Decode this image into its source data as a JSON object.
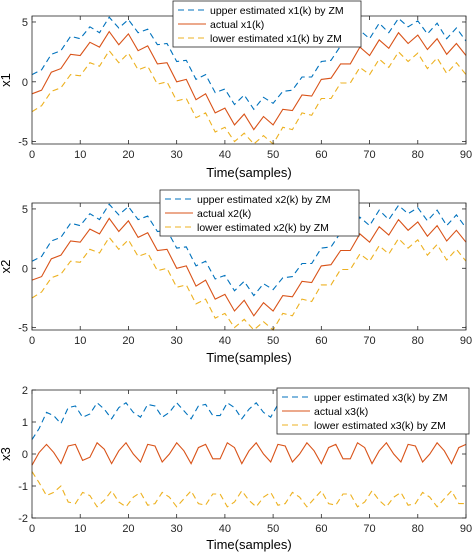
{
  "chart_data": [
    {
      "type": "line",
      "xlabel": "Time(samples)",
      "ylabel": "x1",
      "xlim": [
        0,
        90
      ],
      "ylim": [
        -5.2,
        5.5
      ],
      "xticks": [
        "0",
        "10",
        "20",
        "30",
        "40",
        "50",
        "60",
        "70",
        "80",
        "90"
      ],
      "yticks": [
        "-5",
        "0",
        "5"
      ],
      "legend_position": "top-right",
      "x": [
        0,
        2,
        4,
        6,
        8,
        10,
        12,
        14,
        16,
        18,
        20,
        22,
        24,
        26,
        28,
        30,
        32,
        34,
        36,
        38,
        40,
        42,
        44,
        46,
        48,
        50,
        52,
        54,
        56,
        58,
        60,
        62,
        64,
        66,
        68,
        70,
        72,
        74,
        76,
        78,
        80,
        82,
        84,
        86,
        88,
        90
      ],
      "series": [
        {
          "name": "upper estimated x1(k) by ZM",
          "color": "#0072BD",
          "dash": "dashed",
          "values": [
            0.6,
            1.0,
            2.3,
            2.6,
            3.8,
            3.6,
            4.6,
            4.1,
            5.4,
            4.5,
            5.2,
            4.1,
            4.4,
            3.1,
            3.2,
            1.7,
            1.8,
            0.2,
            0.6,
            -0.9,
            -0.6,
            -1.9,
            -1.1,
            -2.3,
            -1.3,
            -1.8,
            -0.8,
            -0.7,
            0.4,
            0.4,
            1.7,
            1.8,
            3.0,
            3.0,
            4.3,
            3.6,
            4.9,
            4.1,
            5.3,
            4.6,
            5.1,
            4.0,
            4.9,
            3.6,
            4.5,
            3.4
          ]
        },
        {
          "name": "actual x1(k)",
          "color": "#D95319",
          "dash": "solid",
          "values": [
            -1.0,
            -0.7,
            0.8,
            1.1,
            2.3,
            2.2,
            3.3,
            2.9,
            4.2,
            3.1,
            4.0,
            2.6,
            3.0,
            1.5,
            1.6,
            0.0,
            0.2,
            -1.5,
            -1.0,
            -2.6,
            -2.2,
            -3.6,
            -2.7,
            -4.0,
            -2.9,
            -3.6,
            -2.3,
            -2.4,
            -1.1,
            -1.2,
            0.2,
            0.3,
            1.5,
            1.5,
            2.9,
            2.2,
            3.5,
            2.8,
            4.1,
            3.2,
            3.9,
            2.7,
            3.6,
            2.3,
            3.2,
            2.2
          ]
        },
        {
          "name": "lower estimated x1(k) by ZM",
          "color": "#EDB120",
          "dash": "dashed",
          "values": [
            -2.5,
            -2.0,
            -0.8,
            -0.5,
            0.6,
            0.5,
            1.6,
            1.3,
            2.6,
            1.6,
            2.4,
            1.0,
            1.3,
            -0.2,
            0.0,
            -1.6,
            -1.4,
            -3.0,
            -2.6,
            -4.2,
            -3.8,
            -5.0,
            -4.3,
            -5.2,
            -4.5,
            -5.2,
            -3.8,
            -4.0,
            -2.6,
            -2.8,
            -1.4,
            -1.4,
            -0.1,
            -0.1,
            1.2,
            0.6,
            1.9,
            1.2,
            2.5,
            1.7,
            2.4,
            1.1,
            2.0,
            0.7,
            1.6,
            0.6
          ]
        }
      ]
    },
    {
      "type": "line",
      "xlabel": "Time(samples)",
      "ylabel": "x2",
      "xlim": [
        0,
        90
      ],
      "ylim": [
        -5.2,
        5.5
      ],
      "xticks": [
        "0",
        "10",
        "20",
        "30",
        "40",
        "50",
        "60",
        "70",
        "80",
        "90"
      ],
      "yticks": [
        "-5",
        "0",
        "5"
      ],
      "legend_position": "top-right",
      "x": [
        0,
        2,
        4,
        6,
        8,
        10,
        12,
        14,
        16,
        18,
        20,
        22,
        24,
        26,
        28,
        30,
        32,
        34,
        36,
        38,
        40,
        42,
        44,
        46,
        48,
        50,
        52,
        54,
        56,
        58,
        60,
        62,
        64,
        66,
        68,
        70,
        72,
        74,
        76,
        78,
        80,
        82,
        84,
        86,
        88,
        90
      ],
      "series": [
        {
          "name": "upper estimated x2(k) by ZM",
          "color": "#0072BD",
          "dash": "dashed",
          "values": [
            0.6,
            1.0,
            2.3,
            2.6,
            3.8,
            3.6,
            4.6,
            4.1,
            5.4,
            4.5,
            5.2,
            4.1,
            4.4,
            3.1,
            3.2,
            1.7,
            1.8,
            0.2,
            0.6,
            -0.9,
            -0.6,
            -1.9,
            -1.1,
            -2.3,
            -1.3,
            -1.8,
            -0.8,
            -0.7,
            0.4,
            0.4,
            1.7,
            1.8,
            3.0,
            3.0,
            4.3,
            3.6,
            4.9,
            4.1,
            5.3,
            4.6,
            5.1,
            4.0,
            4.9,
            3.6,
            4.5,
            3.4
          ]
        },
        {
          "name": "actual x2(k)",
          "color": "#D95319",
          "dash": "solid",
          "values": [
            -1.0,
            -0.7,
            0.8,
            1.1,
            2.3,
            2.2,
            3.3,
            2.9,
            4.2,
            3.1,
            4.0,
            2.6,
            3.0,
            1.5,
            1.6,
            0.0,
            0.2,
            -1.5,
            -1.0,
            -2.6,
            -2.2,
            -3.6,
            -2.7,
            -4.0,
            -2.9,
            -3.6,
            -2.3,
            -2.4,
            -1.1,
            -1.2,
            0.2,
            0.3,
            1.5,
            1.5,
            2.9,
            2.2,
            3.5,
            2.8,
            4.1,
            3.2,
            3.9,
            2.7,
            3.6,
            2.3,
            3.2,
            2.2
          ]
        },
        {
          "name": "lower estimated x2(k) by ZM",
          "color": "#EDB120",
          "dash": "dashed",
          "values": [
            -2.5,
            -2.0,
            -0.8,
            -0.5,
            0.6,
            0.5,
            1.6,
            1.3,
            2.6,
            1.6,
            2.4,
            1.0,
            1.3,
            -0.2,
            0.0,
            -1.6,
            -1.4,
            -3.0,
            -2.6,
            -4.2,
            -3.8,
            -5.0,
            -4.3,
            -5.2,
            -4.5,
            -5.2,
            -3.8,
            -4.0,
            -2.6,
            -2.8,
            -1.4,
            -1.4,
            -0.1,
            -0.1,
            1.2,
            0.6,
            1.9,
            1.2,
            2.5,
            1.7,
            2.4,
            1.1,
            2.0,
            0.7,
            1.6,
            0.6
          ]
        }
      ]
    },
    {
      "type": "line",
      "xlabel": "Time(samples)",
      "ylabel": "x3",
      "xlim": [
        0,
        90
      ],
      "ylim": [
        -2,
        2
      ],
      "xticks": [
        "0",
        "10",
        "20",
        "30",
        "40",
        "50",
        "60",
        "70",
        "80",
        "90"
      ],
      "yticks": [
        "-2",
        "-1",
        "0",
        "1",
        "2"
      ],
      "legend_position": "top-right",
      "x": [
        0,
        1.5,
        3,
        4.5,
        6,
        7.5,
        9,
        10.5,
        12,
        13.5,
        15,
        16.5,
        18,
        19.5,
        21,
        22.5,
        24,
        25.5,
        27,
        28.5,
        30,
        31.5,
        33,
        34.5,
        36,
        37.5,
        39,
        40.5,
        42,
        43.5,
        45,
        46.5,
        48,
        49.5,
        51,
        52.5,
        54,
        55.5,
        57,
        58.5,
        60,
        61.5,
        63,
        64.5,
        66,
        67.5,
        69,
        70.5,
        72,
        73.5,
        75,
        76.5,
        78,
        79.5,
        81,
        82.5,
        84,
        85.5,
        87,
        88.5,
        90
      ],
      "series": [
        {
          "name": "upper estimated x3(k) by ZM",
          "color": "#0072BD",
          "dash": "dashed",
          "values": [
            0.45,
            0.8,
            1.3,
            1.2,
            0.95,
            1.45,
            1.5,
            1.15,
            1.25,
            1.6,
            1.4,
            1.1,
            1.45,
            1.6,
            1.3,
            1.15,
            1.55,
            1.5,
            1.15,
            1.3,
            1.6,
            1.35,
            1.1,
            1.5,
            1.55,
            1.2,
            1.2,
            1.6,
            1.45,
            1.1,
            1.4,
            1.6,
            1.3,
            1.15,
            1.55,
            1.5,
            1.15,
            1.3,
            1.6,
            1.35,
            1.1,
            1.5,
            1.55,
            1.2,
            1.2,
            1.6,
            1.45,
            1.1,
            1.4,
            1.6,
            1.3,
            1.15,
            1.55,
            1.5,
            1.15,
            1.3,
            1.6,
            1.35,
            1.1,
            1.5,
            1.5
          ]
        },
        {
          "name": "actual x3(k)",
          "color": "#D95319",
          "dash": "solid",
          "values": [
            -0.35,
            0.05,
            0.3,
            0.05,
            -0.3,
            0.25,
            0.3,
            -0.2,
            -0.1,
            0.35,
            0.15,
            -0.3,
            0.1,
            0.35,
            0.0,
            -0.25,
            0.3,
            0.25,
            -0.25,
            0.0,
            0.35,
            0.1,
            -0.3,
            0.2,
            0.3,
            -0.15,
            -0.15,
            0.35,
            0.2,
            -0.3,
            0.1,
            0.35,
            0.0,
            -0.25,
            0.3,
            0.25,
            -0.25,
            0.0,
            0.35,
            0.1,
            -0.3,
            0.2,
            0.3,
            -0.15,
            -0.15,
            0.35,
            0.2,
            -0.3,
            0.1,
            0.35,
            0.0,
            -0.25,
            0.3,
            0.25,
            -0.25,
            0.0,
            0.35,
            0.1,
            -0.3,
            0.2,
            0.3
          ]
        },
        {
          "name": "lower estimated x3(k) by ZM",
          "color": "#EDB120",
          "dash": "dashed",
          "values": [
            -0.55,
            -0.9,
            -1.3,
            -1.2,
            -1.0,
            -1.5,
            -1.55,
            -1.2,
            -1.3,
            -1.65,
            -1.45,
            -1.15,
            -1.5,
            -1.65,
            -1.35,
            -1.2,
            -1.6,
            -1.55,
            -1.2,
            -1.35,
            -1.65,
            -1.4,
            -1.15,
            -1.55,
            -1.6,
            -1.25,
            -1.25,
            -1.65,
            -1.5,
            -1.15,
            -1.45,
            -1.65,
            -1.35,
            -1.2,
            -1.6,
            -1.55,
            -1.2,
            -1.35,
            -1.65,
            -1.4,
            -1.15,
            -1.55,
            -1.6,
            -1.25,
            -1.25,
            -1.65,
            -1.5,
            -1.15,
            -1.45,
            -1.65,
            -1.35,
            -1.2,
            -1.6,
            -1.55,
            -1.2,
            -1.35,
            -1.65,
            -1.4,
            -1.15,
            -1.55,
            -1.55
          ]
        }
      ]
    }
  ]
}
